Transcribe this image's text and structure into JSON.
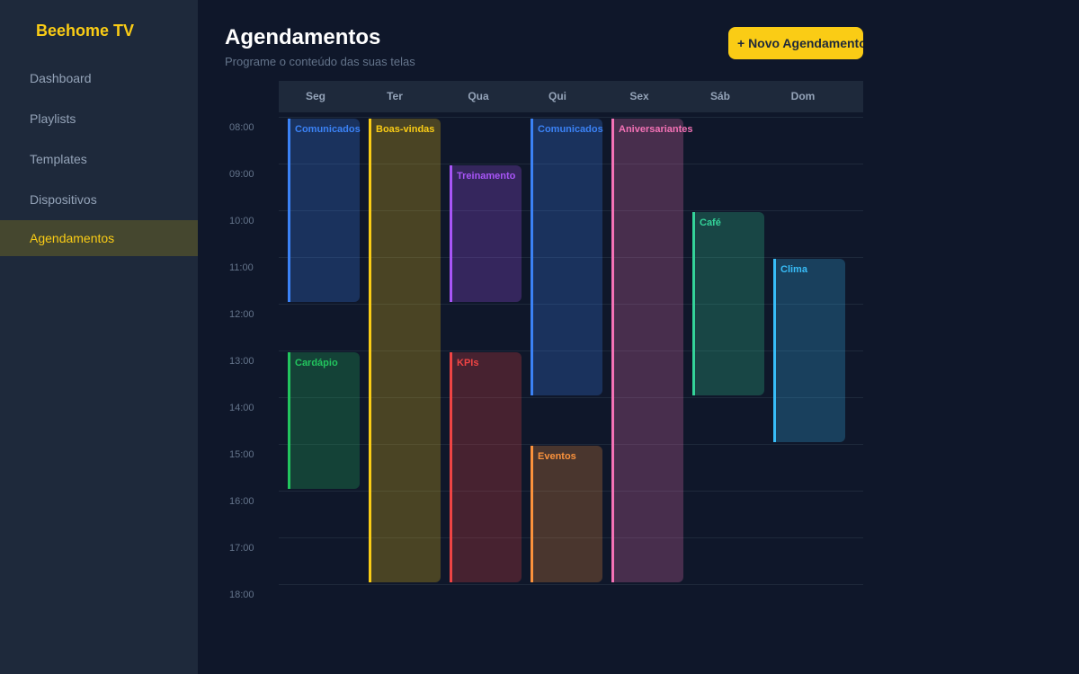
{
  "sidebar": {
    "logo": "Beehome TV",
    "items": [
      {
        "label": "Dashboard"
      },
      {
        "label": "Playlists"
      },
      {
        "label": "Templates"
      },
      {
        "label": "Dispositivos"
      },
      {
        "label": "Agendamentos",
        "active": true
      }
    ]
  },
  "header": {
    "title": "Agendamentos",
    "subtitle": "Programe o conteúdo das suas telas",
    "new_button": "+ Novo Agendamento"
  },
  "calendar": {
    "days": [
      "Seg",
      "Ter",
      "Qua",
      "Qui",
      "Sex",
      "Sáb",
      "Dom"
    ],
    "hours": [
      "08:00",
      "09:00",
      "10:00",
      "11:00",
      "12:00",
      "13:00",
      "14:00",
      "15:00",
      "16:00",
      "17:00",
      "18:00"
    ],
    "events": [
      {
        "title": "Comunicados",
        "day": 0,
        "start": 8,
        "end": 12,
        "color": "#3b82f6"
      },
      {
        "title": "Cardápio",
        "day": 0,
        "start": 13,
        "end": 16,
        "color": "#22c55e"
      },
      {
        "title": "Boas-vindas",
        "day": 1,
        "start": 8,
        "end": 18,
        "color": "#facc15"
      },
      {
        "title": "Treinamento",
        "day": 2,
        "start": 9,
        "end": 12,
        "color": "#a855f7"
      },
      {
        "title": "KPIs",
        "day": 2,
        "start": 13,
        "end": 18,
        "color": "#ef4444"
      },
      {
        "title": "Comunicados",
        "day": 3,
        "start": 8,
        "end": 14,
        "color": "#3b82f6"
      },
      {
        "title": "Eventos",
        "day": 3,
        "start": 15,
        "end": 18,
        "color": "#fb923c"
      },
      {
        "title": "Aniversariantes",
        "day": 4,
        "start": 8,
        "end": 18,
        "color": "#f472b6"
      },
      {
        "title": "Café",
        "day": 5,
        "start": 10,
        "end": 14,
        "color": "#34d399"
      },
      {
        "title": "Clima",
        "day": 6,
        "start": 11,
        "end": 15,
        "color": "#38bdf8"
      }
    ]
  }
}
